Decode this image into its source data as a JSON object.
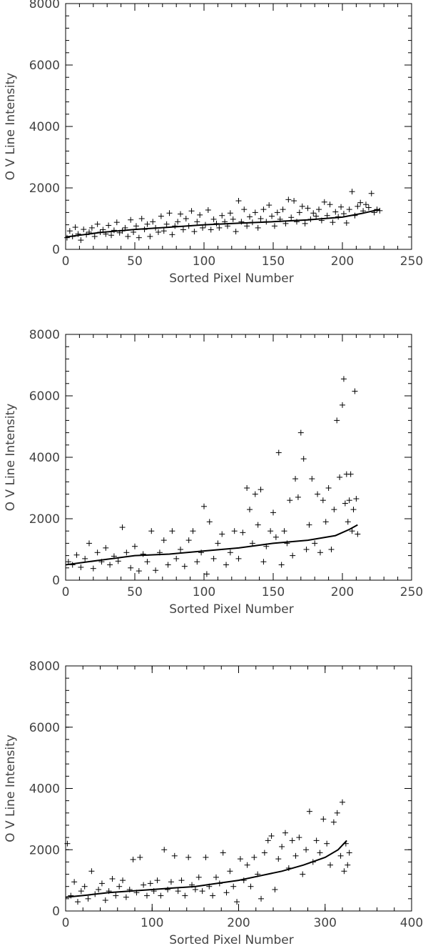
{
  "chart_data": [
    {
      "type": "scatter",
      "xlabel": "Sorted Pixel Number",
      "ylabel": "O V Line Intensity",
      "xlim": [
        0,
        250
      ],
      "ylim": [
        0,
        8000
      ],
      "xticks": [
        0,
        50,
        100,
        150,
        200,
        250
      ],
      "yticks": [
        0,
        2000,
        4000,
        6000,
        8000
      ],
      "xtick_labels": [
        "0",
        "50",
        "100",
        "150",
        "200",
        "250"
      ],
      "ytick_labels": [
        "0",
        "2000",
        "4000",
        "6000",
        "8000"
      ],
      "points": [
        [
          1,
          380
        ],
        [
          3,
          600
        ],
        [
          5,
          420
        ],
        [
          7,
          720
        ],
        [
          9,
          500
        ],
        [
          11,
          300
        ],
        [
          13,
          650
        ],
        [
          15,
          480
        ],
        [
          17,
          560
        ],
        [
          19,
          700
        ],
        [
          21,
          420
        ],
        [
          23,
          820
        ],
        [
          25,
          560
        ],
        [
          27,
          640
        ],
        [
          29,
          500
        ],
        [
          31,
          780
        ],
        [
          33,
          460
        ],
        [
          35,
          620
        ],
        [
          37,
          880
        ],
        [
          39,
          540
        ],
        [
          41,
          600
        ],
        [
          43,
          700
        ],
        [
          45,
          420
        ],
        [
          47,
          960
        ],
        [
          49,
          560
        ],
        [
          51,
          760
        ],
        [
          53,
          380
        ],
        [
          55,
          1000
        ],
        [
          57,
          650
        ],
        [
          59,
          820
        ],
        [
          61,
          420
        ],
        [
          63,
          900
        ],
        [
          65,
          700
        ],
        [
          67,
          560
        ],
        [
          69,
          1080
        ],
        [
          71,
          600
        ],
        [
          73,
          820
        ],
        [
          75,
          1180
        ],
        [
          77,
          480
        ],
        [
          79,
          760
        ],
        [
          81,
          900
        ],
        [
          83,
          1150
        ],
        [
          85,
          640
        ],
        [
          87,
          1000
        ],
        [
          89,
          760
        ],
        [
          91,
          1250
        ],
        [
          93,
          580
        ],
        [
          95,
          900
        ],
        [
          97,
          1120
        ],
        [
          99,
          700
        ],
        [
          101,
          800
        ],
        [
          103,
          1280
        ],
        [
          105,
          640
        ],
        [
          107,
          980
        ],
        [
          109,
          840
        ],
        [
          111,
          700
        ],
        [
          113,
          1100
        ],
        [
          115,
          900
        ],
        [
          117,
          760
        ],
        [
          119,
          1180
        ],
        [
          121,
          980
        ],
        [
          123,
          580
        ],
        [
          125,
          1580
        ],
        [
          127,
          900
        ],
        [
          129,
          1300
        ],
        [
          131,
          760
        ],
        [
          133,
          1060
        ],
        [
          135,
          880
        ],
        [
          137,
          1200
        ],
        [
          139,
          700
        ],
        [
          141,
          1000
        ],
        [
          143,
          1300
        ],
        [
          145,
          900
        ],
        [
          147,
          1440
        ],
        [
          149,
          1080
        ],
        [
          151,
          760
        ],
        [
          153,
          1200
        ],
        [
          155,
          980
        ],
        [
          157,
          1300
        ],
        [
          159,
          840
        ],
        [
          161,
          1620
        ],
        [
          163,
          1040
        ],
        [
          165,
          1580
        ],
        [
          167,
          900
        ],
        [
          169,
          1200
        ],
        [
          171,
          1400
        ],
        [
          173,
          840
        ],
        [
          175,
          1340
        ],
        [
          177,
          980
        ],
        [
          179,
          1180
        ],
        [
          181,
          1080
        ],
        [
          183,
          1300
        ],
        [
          185,
          940
        ],
        [
          187,
          1540
        ],
        [
          189,
          1100
        ],
        [
          191,
          1460
        ],
        [
          193,
          880
        ],
        [
          195,
          1220
        ],
        [
          197,
          1060
        ],
        [
          199,
          1380
        ],
        [
          201,
          1160
        ],
        [
          203,
          860
        ],
        [
          205,
          1300
        ],
        [
          207,
          1880
        ],
        [
          209,
          1100
        ],
        [
          211,
          1400
        ],
        [
          213,
          1520
        ],
        [
          215,
          1250
        ],
        [
          217,
          1460
        ],
        [
          219,
          1360
        ],
        [
          221,
          1820
        ],
        [
          223,
          1200
        ],
        [
          225,
          1300
        ],
        [
          227,
          1260
        ]
      ],
      "fit_line": [
        [
          0,
          400
        ],
        [
          25,
          550
        ],
        [
          50,
          650
        ],
        [
          75,
          720
        ],
        [
          100,
          800
        ],
        [
          125,
          850
        ],
        [
          150,
          900
        ],
        [
          175,
          960
        ],
        [
          200,
          1050
        ],
        [
          215,
          1180
        ],
        [
          227,
          1300
        ]
      ]
    },
    {
      "type": "scatter",
      "xlabel": "Sorted Pixel Number",
      "ylabel": "O V Line Intensity",
      "xlim": [
        0,
        250
      ],
      "ylim": [
        0,
        8000
      ],
      "xticks": [
        0,
        50,
        100,
        150,
        200,
        250
      ],
      "yticks": [
        0,
        2000,
        4000,
        6000,
        8000
      ],
      "xtick_labels": [
        "0",
        "50",
        "100",
        "150",
        "200",
        "250"
      ],
      "ytick_labels": [
        "0",
        "2000",
        "4000",
        "6000",
        "8000"
      ],
      "points": [
        [
          2,
          600
        ],
        [
          5,
          500
        ],
        [
          8,
          820
        ],
        [
          11,
          420
        ],
        [
          14,
          700
        ],
        [
          17,
          1200
        ],
        [
          20,
          380
        ],
        [
          23,
          900
        ],
        [
          26,
          600
        ],
        [
          29,
          1050
        ],
        [
          32,
          500
        ],
        [
          35,
          780
        ],
        [
          38,
          620
        ],
        [
          41,
          1720
        ],
        [
          44,
          900
        ],
        [
          47,
          400
        ],
        [
          50,
          1100
        ],
        [
          53,
          300
        ],
        [
          56,
          850
        ],
        [
          59,
          600
        ],
        [
          62,
          1600
        ],
        [
          65,
          320
        ],
        [
          68,
          900
        ],
        [
          71,
          1300
        ],
        [
          74,
          500
        ],
        [
          77,
          1600
        ],
        [
          80,
          700
        ],
        [
          83,
          1000
        ],
        [
          86,
          450
        ],
        [
          89,
          1300
        ],
        [
          92,
          1600
        ],
        [
          95,
          600
        ],
        [
          98,
          900
        ],
        [
          100,
          2400
        ],
        [
          102,
          200
        ],
        [
          104,
          1900
        ],
        [
          107,
          700
        ],
        [
          110,
          1200
        ],
        [
          113,
          1500
        ],
        [
          116,
          500
        ],
        [
          119,
          900
        ],
        [
          122,
          1600
        ],
        [
          125,
          700
        ],
        [
          128,
          1550
        ],
        [
          131,
          3000
        ],
        [
          133,
          2300
        ],
        [
          135,
          1200
        ],
        [
          137,
          2800
        ],
        [
          139,
          1800
        ],
        [
          141,
          2950
        ],
        [
          143,
          600
        ],
        [
          145,
          1100
        ],
        [
          148,
          1600
        ],
        [
          150,
          2200
        ],
        [
          152,
          1400
        ],
        [
          154,
          4150
        ],
        [
          156,
          500
        ],
        [
          158,
          1600
        ],
        [
          160,
          1200
        ],
        [
          162,
          2600
        ],
        [
          164,
          800
        ],
        [
          166,
          3300
        ],
        [
          168,
          2700
        ],
        [
          170,
          4800
        ],
        [
          172,
          3950
        ],
        [
          174,
          1000
        ],
        [
          176,
          1800
        ],
        [
          178,
          3300
        ],
        [
          180,
          1200
        ],
        [
          182,
          2800
        ],
        [
          184,
          900
        ],
        [
          186,
          2600
        ],
        [
          188,
          1900
        ],
        [
          190,
          3000
        ],
        [
          192,
          1000
        ],
        [
          194,
          2300
        ],
        [
          196,
          5200
        ],
        [
          198,
          3350
        ],
        [
          200,
          5700
        ],
        [
          201,
          6550
        ],
        [
          202,
          2500
        ],
        [
          203,
          3450
        ],
        [
          204,
          1900
        ],
        [
          205,
          2600
        ],
        [
          206,
          3450
        ],
        [
          207,
          1600
        ],
        [
          208,
          2300
        ],
        [
          209,
          6150
        ],
        [
          210,
          2650
        ],
        [
          211,
          1500
        ]
      ],
      "fit_line": [
        [
          0,
          500
        ],
        [
          25,
          650
        ],
        [
          50,
          800
        ],
        [
          75,
          850
        ],
        [
          100,
          950
        ],
        [
          125,
          1050
        ],
        [
          150,
          1200
        ],
        [
          175,
          1300
        ],
        [
          195,
          1450
        ],
        [
          205,
          1650
        ],
        [
          211,
          1800
        ]
      ]
    },
    {
      "type": "scatter",
      "xlabel": "Sorted Pixel Number",
      "ylabel": "O V Line Intensity",
      "xlim": [
        0,
        400
      ],
      "ylim": [
        0,
        8000
      ],
      "xticks": [
        0,
        100,
        200,
        300,
        400
      ],
      "yticks": [
        0,
        2000,
        4000,
        6000,
        8000
      ],
      "xtick_labels": [
        "0",
        "100",
        "200",
        "300",
        "400"
      ],
      "ytick_labels": [
        "0",
        "2000",
        "4000",
        "6000",
        "8000"
      ],
      "points": [
        [
          2,
          2200
        ],
        [
          6,
          500
        ],
        [
          10,
          950
        ],
        [
          14,
          300
        ],
        [
          18,
          650
        ],
        [
          22,
          800
        ],
        [
          26,
          400
        ],
        [
          30,
          1300
        ],
        [
          34,
          550
        ],
        [
          38,
          700
        ],
        [
          42,
          900
        ],
        [
          46,
          350
        ],
        [
          50,
          650
        ],
        [
          54,
          1050
        ],
        [
          58,
          500
        ],
        [
          62,
          800
        ],
        [
          66,
          1000
        ],
        [
          70,
          450
        ],
        [
          74,
          700
        ],
        [
          78,
          1680
        ],
        [
          82,
          600
        ],
        [
          86,
          1750
        ],
        [
          90,
          850
        ],
        [
          94,
          500
        ],
        [
          98,
          900
        ],
        [
          102,
          650
        ],
        [
          106,
          1000
        ],
        [
          110,
          500
        ],
        [
          114,
          2000
        ],
        [
          118,
          700
        ],
        [
          122,
          950
        ],
        [
          126,
          1800
        ],
        [
          130,
          650
        ],
        [
          134,
          1000
        ],
        [
          138,
          500
        ],
        [
          142,
          1750
        ],
        [
          146,
          850
        ],
        [
          150,
          700
        ],
        [
          154,
          1100
        ],
        [
          158,
          650
        ],
        [
          162,
          1750
        ],
        [
          166,
          800
        ],
        [
          170,
          500
        ],
        [
          174,
          1100
        ],
        [
          178,
          900
        ],
        [
          182,
          1900
        ],
        [
          186,
          600
        ],
        [
          190,
          1300
        ],
        [
          194,
          800
        ],
        [
          198,
          300
        ],
        [
          202,
          1700
        ],
        [
          206,
          1000
        ],
        [
          210,
          1500
        ],
        [
          214,
          800
        ],
        [
          218,
          1750
        ],
        [
          222,
          1200
        ],
        [
          226,
          400
        ],
        [
          230,
          1900
        ],
        [
          234,
          2300
        ],
        [
          238,
          2450
        ],
        [
          242,
          700
        ],
        [
          246,
          1700
        ],
        [
          250,
          2100
        ],
        [
          254,
          2550
        ],
        [
          258,
          1400
        ],
        [
          262,
          2300
        ],
        [
          266,
          1800
        ],
        [
          270,
          2400
        ],
        [
          274,
          1200
        ],
        [
          278,
          2000
        ],
        [
          282,
          3250
        ],
        [
          286,
          1600
        ],
        [
          290,
          2300
        ],
        [
          294,
          1900
        ],
        [
          298,
          3000
        ],
        [
          302,
          2200
        ],
        [
          306,
          1500
        ],
        [
          310,
          2900
        ],
        [
          314,
          3200
        ],
        [
          318,
          1800
        ],
        [
          320,
          3550
        ],
        [
          322,
          1300
        ],
        [
          324,
          2200
        ],
        [
          326,
          1500
        ],
        [
          328,
          1900
        ]
      ],
      "fit_line": [
        [
          0,
          450
        ],
        [
          25,
          520
        ],
        [
          50,
          600
        ],
        [
          75,
          650
        ],
        [
          100,
          700
        ],
        [
          125,
          750
        ],
        [
          150,
          800
        ],
        [
          175,
          900
        ],
        [
          200,
          1000
        ],
        [
          225,
          1150
        ],
        [
          250,
          1300
        ],
        [
          275,
          1500
        ],
        [
          300,
          1750
        ],
        [
          315,
          2000
        ],
        [
          325,
          2300
        ]
      ]
    }
  ]
}
